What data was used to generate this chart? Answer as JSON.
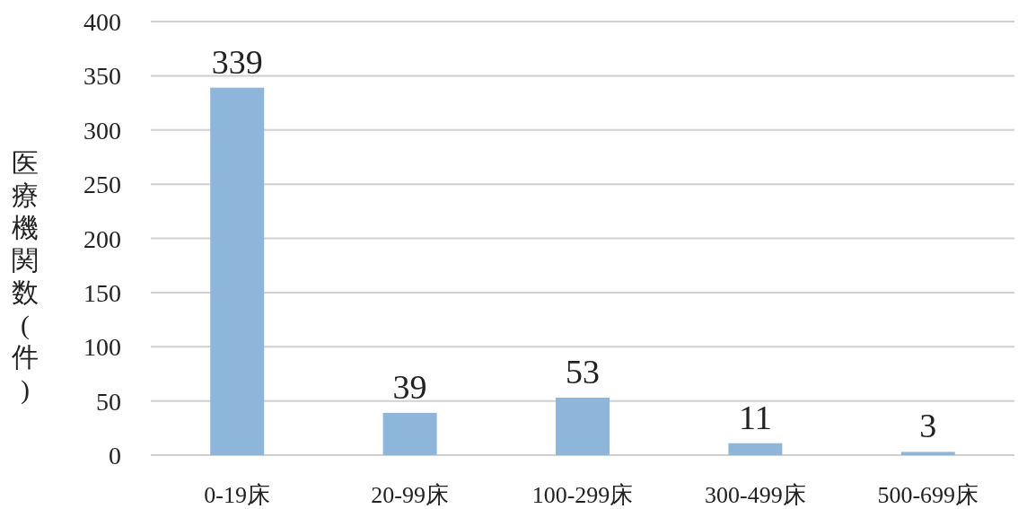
{
  "chart_data": {
    "type": "bar",
    "ylabel": "医療機関数(件)",
    "categories": [
      "0-19床",
      "20-99床",
      "100-299床",
      "300-499床",
      "500-699床"
    ],
    "values": [
      339,
      39,
      53,
      11,
      3
    ],
    "color": "#8eb6da",
    "ylim": [
      0,
      400
    ],
    "yticks": [
      0,
      50,
      100,
      150,
      200,
      250,
      300,
      350,
      400
    ],
    "grid": "y",
    "data_labels": true
  }
}
